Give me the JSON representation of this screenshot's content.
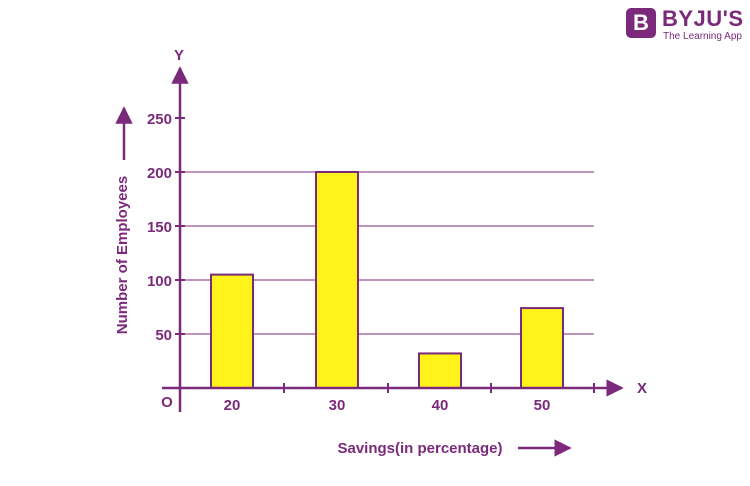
{
  "brand": {
    "badge": "B",
    "name": "BYJU'S",
    "tagline": "The Learning App"
  },
  "colors": {
    "axis": "#7b2a7b",
    "text": "#7b2a7b",
    "bar_fill": "#fff31a",
    "bar_stroke": "#7b2a7b"
  },
  "chart_data": {
    "type": "bar",
    "title": "",
    "xlabel": "Savings(in percentage)",
    "ylabel": "Number of Employees",
    "x_axis_letter": "X",
    "y_axis_letter": "Y",
    "origin_label": "O",
    "categories": [
      "20",
      "30",
      "40",
      "50"
    ],
    "values": [
      105,
      200,
      32,
      74
    ],
    "yticks": [
      50,
      100,
      150,
      200,
      250
    ],
    "ylim": [
      0,
      250
    ],
    "grid": true
  }
}
